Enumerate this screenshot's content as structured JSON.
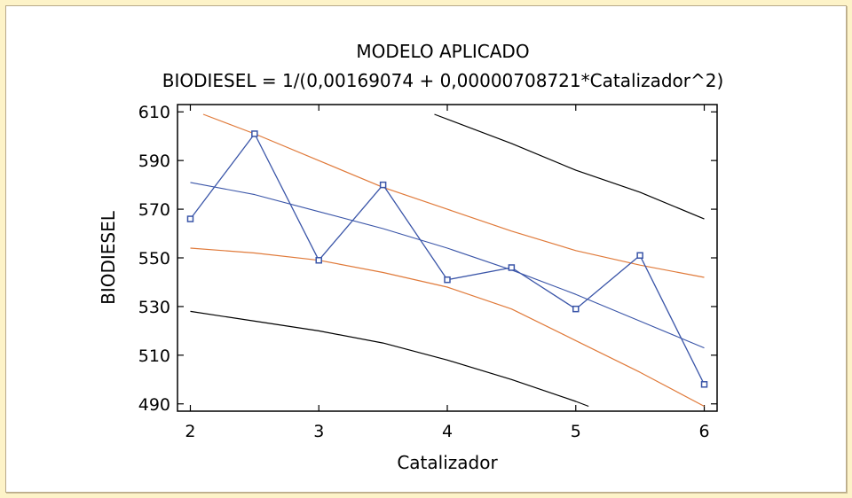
{
  "chart_data": {
    "type": "line",
    "title": "MODELO APLICADO",
    "subtitle": "BIODIESEL = 1/(0,00169074 + 0,00000708721*Catalizador^2)",
    "xlabel": "Catalizador",
    "ylabel": "BIODIESEL",
    "xlim": [
      1.9,
      6.1
    ],
    "ylim": [
      487,
      613
    ],
    "xticks": [
      2,
      3,
      4,
      5,
      6
    ],
    "yticks": [
      490,
      510,
      530,
      550,
      570,
      590,
      610
    ],
    "grid": false,
    "colors": {
      "observed": "#3a55a8",
      "fitted": "#3a55a8",
      "confidence": "#e07a3a",
      "prediction": "#000000"
    },
    "observed": {
      "x": [
        2,
        2.5,
        3,
        3.5,
        4,
        4.5,
        5,
        5.5,
        6
      ],
      "y": [
        566,
        601,
        549,
        580,
        541,
        546,
        529,
        551,
        498
      ]
    },
    "fitted": {
      "x": [
        2,
        2.5,
        3,
        3.5,
        4,
        4.5,
        5,
        5.5,
        6
      ],
      "y": [
        581,
        576,
        569,
        562,
        554,
        545,
        535,
        524,
        513
      ]
    },
    "confidence_upper": {
      "x": [
        2.1,
        2.5,
        3,
        3.5,
        4,
        4.5,
        5,
        5.5,
        6
      ],
      "y": [
        609,
        601,
        590,
        579,
        570,
        561,
        553,
        547,
        542
      ]
    },
    "confidence_lower": {
      "x": [
        2,
        2.5,
        3,
        3.5,
        4,
        4.5,
        5,
        5.5,
        6
      ],
      "y": [
        554,
        552,
        549,
        544,
        538,
        529,
        516,
        503,
        489
      ]
    },
    "prediction_upper": {
      "x": [
        3.9,
        4.5,
        5,
        5.5,
        6
      ],
      "y": [
        609,
        597,
        586,
        577,
        566
      ]
    },
    "prediction_lower": {
      "x": [
        2,
        2.5,
        3,
        3.5,
        4,
        4.5,
        5,
        5.1
      ],
      "y": [
        528,
        524,
        520,
        515,
        508,
        500,
        491,
        489
      ]
    }
  }
}
